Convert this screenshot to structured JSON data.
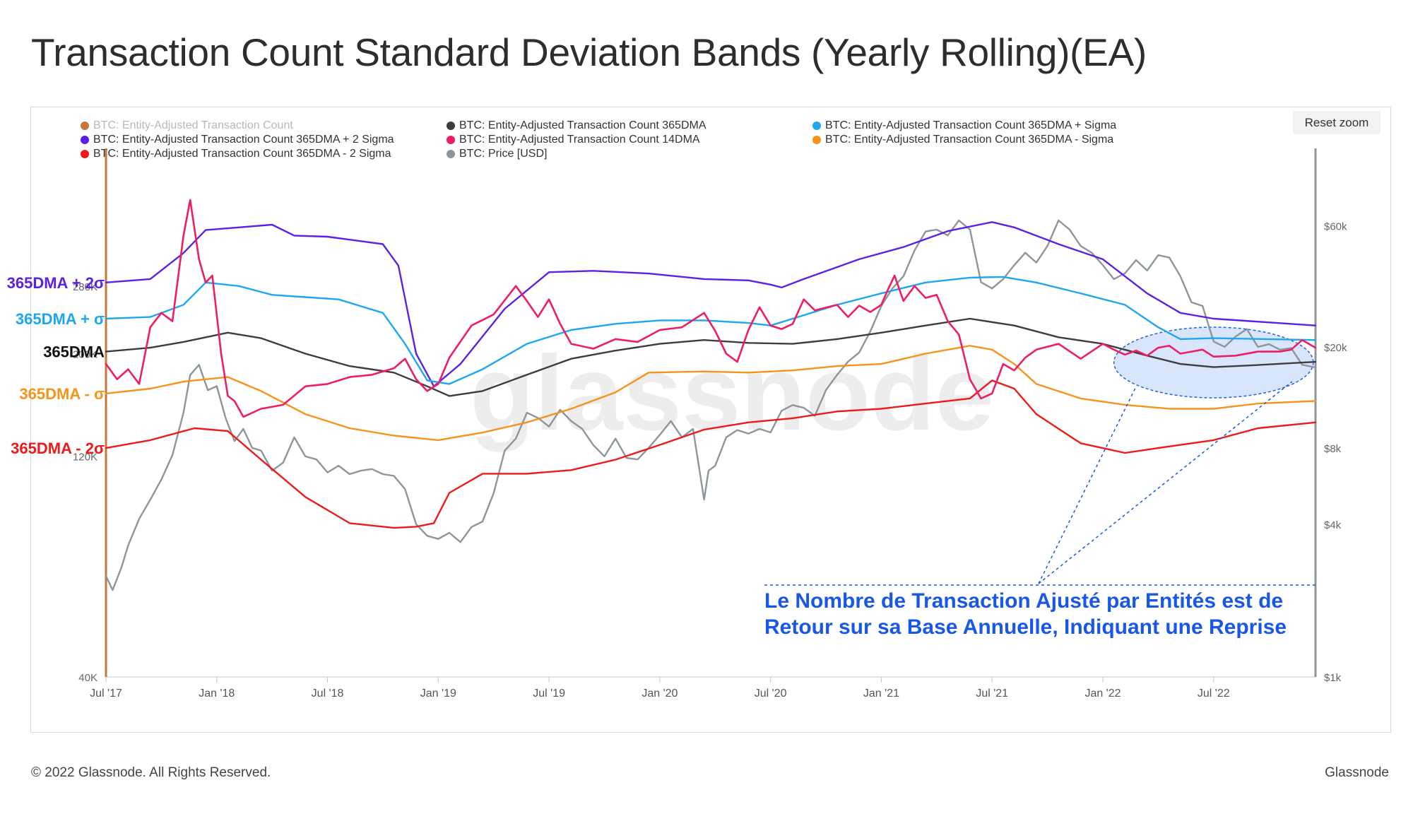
{
  "page": {
    "title": "Transaction Count Standard Deviation Bands (Yearly Rolling)(EA)"
  },
  "toolbar": {
    "reset_zoom": "Reset zoom"
  },
  "legend": [
    {
      "label": "BTC: Entity-Adjusted Transaction Count",
      "color": "#c8773c",
      "faded": true
    },
    {
      "label": "BTC: Entity-Adjusted Transaction Count 365DMA",
      "color": "#3d3d3d"
    },
    {
      "label": "BTC: Entity-Adjusted Transaction Count 365DMA + Sigma",
      "color": "#1ea7f0"
    },
    {
      "label": "BTC: Entity-Adjusted Transaction Count 365DMA + 2 Sigma",
      "color": "#5b21e6"
    },
    {
      "label": "BTC: Entity-Adjusted Transaction Count 14DMA",
      "color": "#ee1e63"
    },
    {
      "label": "BTC: Entity-Adjusted Transaction Count 365DMA - Sigma",
      "color": "#f7931a"
    },
    {
      "label": "BTC: Entity-Adjusted Transaction Count 365DMA - 2 Sigma",
      "color": "#ee1a1a"
    },
    {
      "label": "BTC: Price [USD]",
      "color": "#8d969a"
    }
  ],
  "footer": {
    "copyright": "© 2022 Glassnode. All Rights Reserved.",
    "brand": "Glassnode"
  },
  "chart_data": {
    "type": "line",
    "title": "Transaction Count Standard Deviation Bands (Yearly Rolling)(EA)",
    "watermark": "glassnode",
    "x_tick_labels": [
      "Jul '17",
      "Jan '18",
      "Jul '18",
      "Jan '19",
      "Jul '19",
      "Jan '20",
      "Jul '20",
      "Jan '21",
      "Jul '21",
      "Jan '22",
      "Jul '22"
    ],
    "x_range": [
      2017.5,
      2022.96
    ],
    "y_left": {
      "scale": "log",
      "range": [
        40000,
        500000
      ],
      "tick_labels": [
        "40K",
        "120K",
        "200K",
        "280K"
      ],
      "tick_values": [
        40000,
        120000,
        200000,
        280000
      ]
    },
    "y_right": {
      "scale": "log",
      "range": [
        1000,
        100000
      ],
      "tick_labels": [
        "$1k",
        "$4k",
        "$8k",
        "$20k",
        "$60k"
      ],
      "tick_values": [
        1000,
        4000,
        8000,
        20000,
        60000
      ]
    },
    "band_labels": [
      {
        "text": "365DMA + 2σ",
        "color": "#5b21e6",
        "series": "plus2"
      },
      {
        "text": "365DMA + σ",
        "color": "#1ea7f0",
        "series": "plus1"
      },
      {
        "text": "365DMA",
        "color": "#111111",
        "series": "dma365"
      },
      {
        "text": "365DMA - σ",
        "color": "#f7931a",
        "series": "minus1"
      },
      {
        "text": "365DMA - 2σ",
        "color": "#ee1a1a",
        "series": "minus2"
      }
    ],
    "annotation": {
      "lines": [
        "Le Nombre de Transaction Ajusté par Entités est de",
        "Retour sur sa Base Annuelle, Indiquant une Reprise"
      ],
      "color": "#1957e8",
      "highlight_x": [
        2022.05,
        2022.95
      ]
    },
    "series": [
      {
        "name": "365DMA + 2 Sigma",
        "key": "plus2",
        "color": "#5b21e6",
        "axis": "left",
        "x": [
          2017.5,
          2017.7,
          2017.85,
          2017.95,
          2018.1,
          2018.25,
          2018.35,
          2018.5,
          2018.75,
          2018.82,
          2018.9,
          2018.98,
          2019.1,
          2019.3,
          2019.5,
          2019.7,
          2019.95,
          2020.2,
          2020.4,
          2020.5,
          2020.55,
          2020.65,
          2020.9,
          2021.1,
          2021.3,
          2021.5,
          2021.6,
          2021.8,
          2022.0,
          2022.2,
          2022.35,
          2022.5,
          2022.96
        ],
        "y": [
          285000,
          290000,
          330000,
          370000,
          375000,
          380000,
          360000,
          358000,
          345000,
          310000,
          200000,
          170000,
          190000,
          250000,
          300000,
          302000,
          298000,
          290000,
          288000,
          282000,
          278000,
          290000,
          320000,
          340000,
          368000,
          385000,
          375000,
          345000,
          320000,
          270000,
          245000,
          238000,
          230000
        ]
      },
      {
        "name": "365DMA + Sigma",
        "key": "plus1",
        "color": "#1ea7f0",
        "axis": "left",
        "x": [
          2017.5,
          2017.7,
          2017.85,
          2017.95,
          2018.1,
          2018.25,
          2018.4,
          2018.55,
          2018.75,
          2018.85,
          2018.95,
          2019.05,
          2019.2,
          2019.4,
          2019.6,
          2019.8,
          2020.0,
          2020.2,
          2020.4,
          2020.5,
          2020.6,
          2020.8,
          2021.0,
          2021.2,
          2021.4,
          2021.55,
          2021.7,
          2021.9,
          2022.1,
          2022.25,
          2022.35,
          2022.5,
          2022.96
        ],
        "y": [
          238000,
          240000,
          255000,
          285000,
          280000,
          268000,
          265000,
          262000,
          245000,
          210000,
          175000,
          172000,
          185000,
          210000,
          225000,
          232000,
          236000,
          236000,
          233000,
          230000,
          238000,
          255000,
          270000,
          285000,
          292000,
          293000,
          285000,
          270000,
          255000,
          228000,
          215000,
          216000,
          214000
        ]
      },
      {
        "name": "365DMA",
        "key": "dma365",
        "color": "#3d3d3d",
        "axis": "left",
        "x": [
          2017.5,
          2017.7,
          2017.85,
          2018.05,
          2018.2,
          2018.4,
          2018.6,
          2018.8,
          2018.95,
          2019.05,
          2019.2,
          2019.4,
          2019.6,
          2019.8,
          2020.0,
          2020.2,
          2020.4,
          2020.6,
          2020.8,
          2021.0,
          2021.2,
          2021.4,
          2021.6,
          2021.8,
          2022.0,
          2022.2,
          2022.35,
          2022.5,
          2022.7,
          2022.96
        ],
        "y": [
          202000,
          206000,
          212000,
          222000,
          216000,
          200000,
          188000,
          182000,
          170000,
          162000,
          166000,
          180000,
          195000,
          203000,
          210000,
          214000,
          211000,
          210000,
          215000,
          222000,
          230000,
          238000,
          230000,
          217000,
          210000,
          198000,
          190000,
          187000,
          189000,
          192000
        ]
      },
      {
        "name": "365DMA - Sigma",
        "key": "minus1",
        "color": "#f7931a",
        "axis": "left",
        "x": [
          2017.5,
          2017.7,
          2017.85,
          2018.05,
          2018.2,
          2018.4,
          2018.6,
          2018.8,
          2019.0,
          2019.2,
          2019.4,
          2019.6,
          2019.8,
          2019.95,
          2020.2,
          2020.4,
          2020.6,
          2020.8,
          2021.0,
          2021.2,
          2021.4,
          2021.5,
          2021.6,
          2021.7,
          2021.9,
          2022.1,
          2022.3,
          2022.5,
          2022.7,
          2022.96
        ],
        "y": [
          164000,
          168000,
          174000,
          178000,
          166000,
          148000,
          138000,
          133000,
          130000,
          135000,
          142000,
          152000,
          165000,
          182000,
          183000,
          182000,
          184000,
          188000,
          190000,
          200000,
          208000,
          204000,
          190000,
          172000,
          160000,
          155000,
          152000,
          152000,
          156000,
          158000
        ]
      },
      {
        "name": "365DMA - 2 Sigma",
        "key": "minus2",
        "color": "#ee1a1a",
        "axis": "left",
        "x": [
          2017.5,
          2017.7,
          2017.9,
          2018.05,
          2018.2,
          2018.4,
          2018.6,
          2018.8,
          2018.9,
          2018.98,
          2019.05,
          2019.2,
          2019.4,
          2019.6,
          2019.8,
          2020.0,
          2020.2,
          2020.4,
          2020.6,
          2020.8,
          2021.0,
          2021.2,
          2021.4,
          2021.5,
          2021.6,
          2021.7,
          2021.9,
          2022.1,
          2022.3,
          2022.5,
          2022.7,
          2022.96
        ],
        "y": [
          125000,
          130000,
          138000,
          136000,
          118000,
          98000,
          86000,
          84000,
          84500,
          86000,
          100000,
          110000,
          110000,
          112000,
          118000,
          127000,
          137000,
          142000,
          145000,
          150000,
          152000,
          156000,
          160000,
          175000,
          168000,
          148000,
          128000,
          122000,
          126000,
          130000,
          138000,
          142000
        ]
      },
      {
        "name": "14DMA",
        "key": "dma14",
        "color": "#ee1e63",
        "axis": "left",
        "x": [
          2017.5,
          2017.55,
          2017.6,
          2017.65,
          2017.7,
          2017.75,
          2017.8,
          2017.85,
          2017.88,
          2017.92,
          2017.95,
          2017.98,
          2018.02,
          2018.05,
          2018.08,
          2018.12,
          2018.2,
          2018.3,
          2018.4,
          2018.5,
          2018.6,
          2018.7,
          2018.8,
          2018.85,
          2018.9,
          2018.95,
          2019.0,
          2019.05,
          2019.15,
          2019.25,
          2019.35,
          2019.4,
          2019.45,
          2019.5,
          2019.55,
          2019.6,
          2019.7,
          2019.8,
          2019.9,
          2020.0,
          2020.1,
          2020.2,
          2020.25,
          2020.3,
          2020.35,
          2020.4,
          2020.45,
          2020.5,
          2020.55,
          2020.6,
          2020.65,
          2020.7,
          2020.8,
          2020.85,
          2020.9,
          2020.95,
          2021.0,
          2021.03,
          2021.06,
          2021.1,
          2021.15,
          2021.2,
          2021.25,
          2021.3,
          2021.35,
          2021.4,
          2021.45,
          2021.5,
          2021.55,
          2021.6,
          2021.65,
          2021.7,
          2021.8,
          2021.9,
          2022.0,
          2022.05,
          2022.1,
          2022.15,
          2022.2,
          2022.25,
          2022.3,
          2022.35,
          2022.4,
          2022.45,
          2022.5,
          2022.6,
          2022.7,
          2022.8,
          2022.85,
          2022.9,
          2022.96
        ],
        "y": [
          190000,
          176000,
          185000,
          172000,
          228000,
          245000,
          235000,
          360000,
          430000,
          320000,
          285000,
          295000,
          200000,
          162000,
          158000,
          146000,
          152000,
          155000,
          170000,
          172000,
          178000,
          180000,
          186000,
          195000,
          176000,
          166000,
          172000,
          196000,
          230000,
          243000,
          280000,
          260000,
          240000,
          262000,
          232000,
          210000,
          205000,
          215000,
          212000,
          225000,
          228000,
          245000,
          224000,
          200000,
          192000,
          225000,
          252000,
          230000,
          226000,
          232000,
          262000,
          248000,
          255000,
          240000,
          254000,
          246000,
          255000,
          275000,
          295000,
          260000,
          280000,
          264000,
          268000,
          235000,
          220000,
          176000,
          160000,
          164000,
          190000,
          184000,
          196000,
          204000,
          210000,
          195000,
          210000,
          204000,
          199000,
          203000,
          198000,
          206000,
          208000,
          200000,
          202000,
          204000,
          197000,
          198000,
          202000,
          202000,
          204000,
          214000,
          206000
        ]
      },
      {
        "name": "Price [USD]",
        "key": "price",
        "color": "#8d969a",
        "axis": "right",
        "x": [
          2017.5,
          2017.53,
          2017.57,
          2017.6,
          2017.65,
          2017.7,
          2017.75,
          2017.8,
          2017.85,
          2017.88,
          2017.92,
          2017.96,
          2018.0,
          2018.04,
          2018.08,
          2018.12,
          2018.16,
          2018.2,
          2018.25,
          2018.3,
          2018.35,
          2018.4,
          2018.45,
          2018.5,
          2018.55,
          2018.6,
          2018.65,
          2018.7,
          2018.75,
          2018.8,
          2018.85,
          2018.9,
          2018.95,
          2019.0,
          2019.05,
          2019.1,
          2019.15,
          2019.2,
          2019.25,
          2019.3,
          2019.35,
          2019.4,
          2019.45,
          2019.5,
          2019.55,
          2019.6,
          2019.65,
          2019.7,
          2019.75,
          2019.8,
          2019.85,
          2019.9,
          2019.95,
          2020.0,
          2020.05,
          2020.1,
          2020.15,
          2020.2,
          2020.22,
          2020.25,
          2020.3,
          2020.35,
          2020.4,
          2020.45,
          2020.5,
          2020.55,
          2020.6,
          2020.65,
          2020.7,
          2020.75,
          2020.8,
          2020.85,
          2020.9,
          2020.95,
          2021.0,
          2021.05,
          2021.1,
          2021.15,
          2021.2,
          2021.25,
          2021.3,
          2021.35,
          2021.4,
          2021.45,
          2021.5,
          2021.55,
          2021.6,
          2021.65,
          2021.7,
          2021.75,
          2021.8,
          2021.85,
          2021.9,
          2021.95,
          2022.0,
          2022.05,
          2022.1,
          2022.15,
          2022.2,
          2022.25,
          2022.3,
          2022.35,
          2022.4,
          2022.45,
          2022.5,
          2022.55,
          2022.6,
          2022.65,
          2022.7,
          2022.75,
          2022.8,
          2022.85,
          2022.9,
          2022.96
        ],
        "y": [
          2500,
          2200,
          2700,
          3300,
          4200,
          5000,
          6000,
          7500,
          11000,
          15500,
          17000,
          13500,
          14000,
          10500,
          8500,
          9500,
          8000,
          7800,
          6500,
          7000,
          8800,
          7400,
          7200,
          6400,
          6800,
          6300,
          6500,
          6600,
          6300,
          6200,
          5500,
          4000,
          3600,
          3500,
          3700,
          3400,
          3900,
          4100,
          5300,
          7800,
          8700,
          11000,
          10500,
          9700,
          11300,
          10200,
          9500,
          8200,
          7400,
          8700,
          7300,
          7200,
          8000,
          9000,
          10200,
          8800,
          9500,
          5000,
          6500,
          6800,
          8800,
          9400,
          9100,
          9500,
          9200,
          11200,
          11800,
          11500,
          10700,
          13500,
          15500,
          17500,
          19000,
          23000,
          29000,
          34000,
          38000,
          48000,
          57000,
          58000,
          55000,
          63000,
          58000,
          36000,
          34000,
          37000,
          42000,
          47000,
          43000,
          50000,
          63000,
          58000,
          50000,
          47000,
          42000,
          37000,
          39000,
          44000,
          40000,
          46000,
          45000,
          38000,
          30000,
          29000,
          21000,
          20000,
          22000,
          23500,
          20000,
          20500,
          19500,
          19800,
          17000,
          16600
        ]
      }
    ]
  }
}
